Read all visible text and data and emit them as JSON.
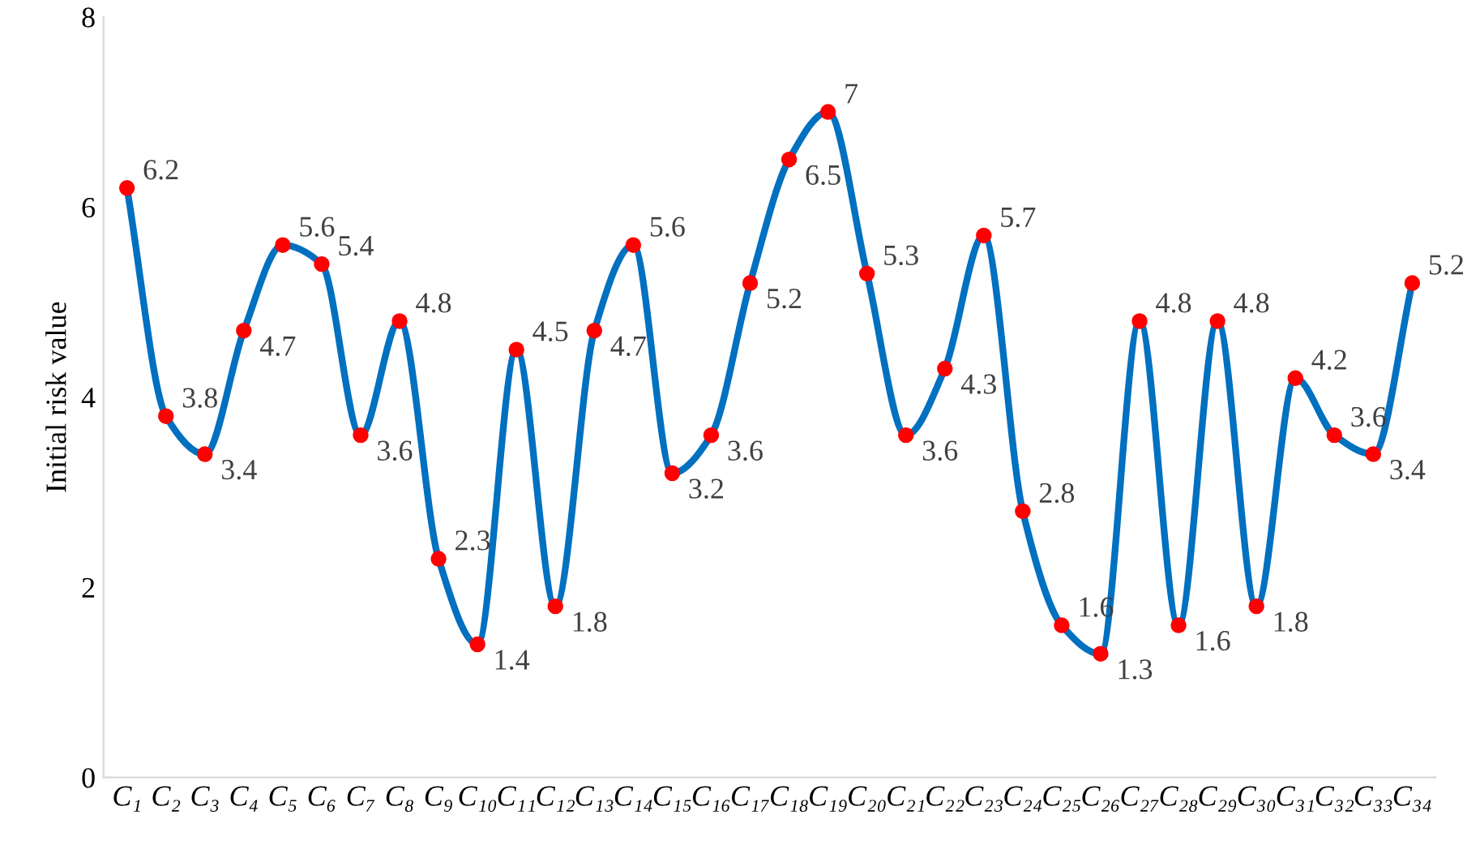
{
  "chart_data": {
    "type": "line",
    "ylabel": "Initial risk value",
    "categories": [
      "C₁",
      "C₂",
      "C₃",
      "C₄",
      "C₅",
      "C₆",
      "C₇",
      "C₈",
      "C₉",
      "C₁₀",
      "C₁₁",
      "C₁₂",
      "C₁₃",
      "C₁₄",
      "C₁₅",
      "C₁₆",
      "C₁₇",
      "C₁₈",
      "C₁₉",
      "C₂₀",
      "C₂₁",
      "C₂₂",
      "C₂₃",
      "C₂₄",
      "C₂₅",
      "C₂₆",
      "C₂₇",
      "C₂₈",
      "C₂₉",
      "C₃₀",
      "C₃₁",
      "C₃₂",
      "C₃₃",
      "C₃₄"
    ],
    "series": [
      {
        "color": "#0070c0",
        "values": [
          6.2,
          3.8,
          3.4,
          4.7,
          5.6,
          5.4,
          3.6,
          4.8,
          2.3,
          1.4,
          4.5,
          1.8,
          4.7,
          5.6,
          3.2,
          3.6,
          5.2,
          6.5,
          7,
          5.3,
          3.6,
          4.3,
          5.7,
          2.8,
          1.6,
          1.3,
          4.8,
          1.6,
          4.8,
          1.8,
          4.2,
          3.6,
          3.4,
          5.2
        ]
      }
    ],
    "ylim": [
      0,
      8
    ],
    "yticks": [
      0,
      2,
      4,
      6,
      8
    ],
    "grid": false,
    "legend": false,
    "marker": "circle",
    "line_style": "solid",
    "data_labels": true
  }
}
